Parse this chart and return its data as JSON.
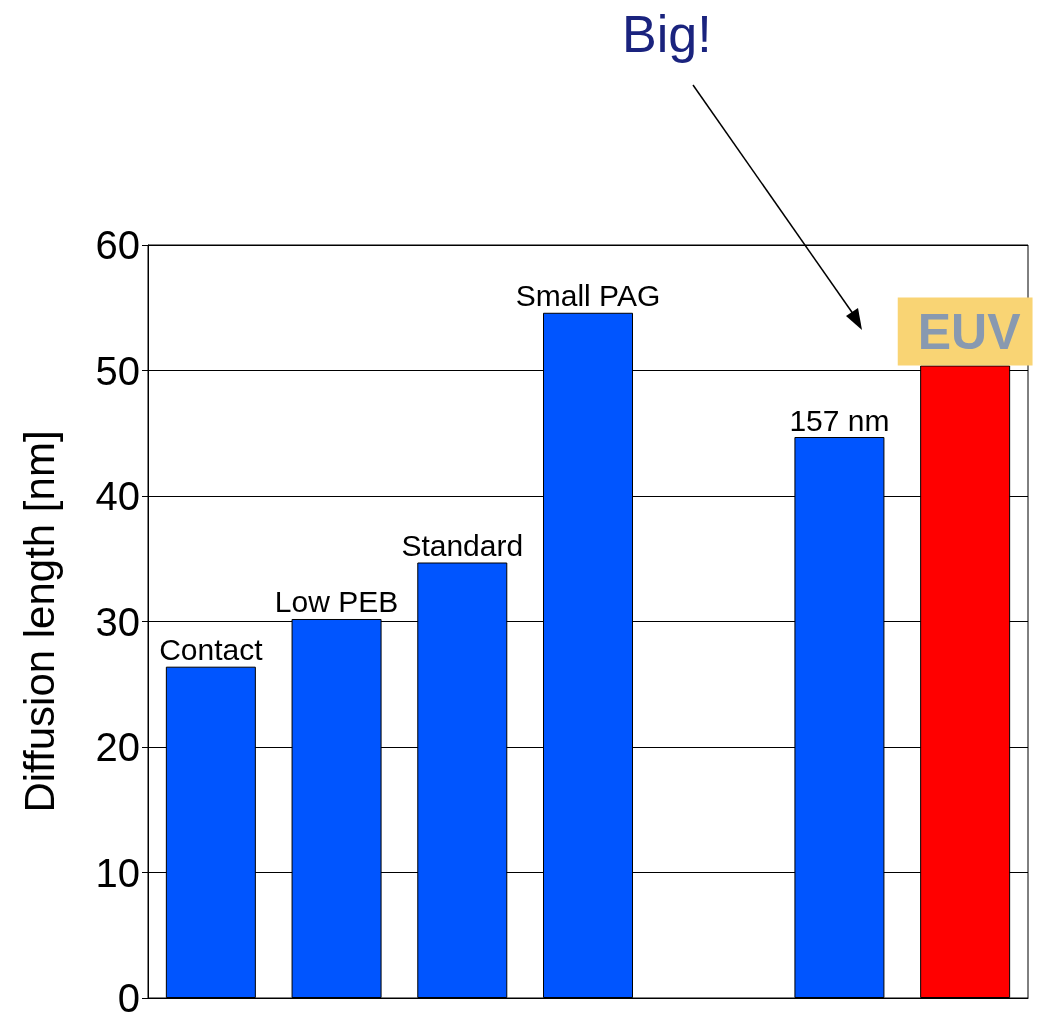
{
  "chart_data": {
    "type": "bar",
    "ylabel": "Diffusion length [nm]",
    "categories": [
      "Contact",
      "Low PEB",
      "Standard",
      "Small PAG",
      null,
      "157 nm",
      "EUV"
    ],
    "values": [
      26.4,
      30.2,
      34.7,
      54.6,
      null,
      44.7,
      50.4
    ],
    "colors": [
      "#0055ff",
      "#0055ff",
      "#0055ff",
      "#0055ff",
      "#0055ff",
      "#0055ff",
      "#ff0000"
    ],
    "ylim": [
      0,
      60
    ],
    "yticks": [
      0,
      10,
      20,
      30,
      40,
      50,
      60
    ],
    "grid": "y",
    "tick_labels": "y",
    "annotations": [
      "Big!"
    ]
  }
}
